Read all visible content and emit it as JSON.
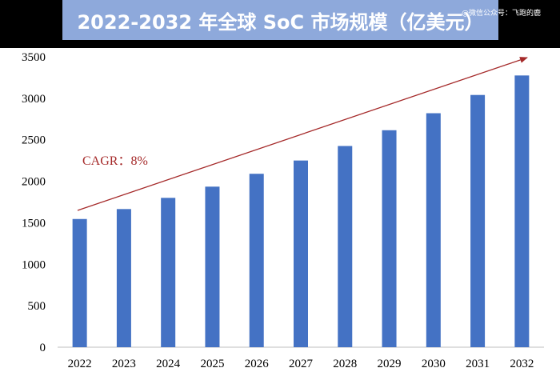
{
  "header": {
    "title": "2022-2032 年全球 SoC 市场规模（亿美元）",
    "watermark": "@微信公众号：飞跑的鹿"
  },
  "chart_data": {
    "type": "bar",
    "title": "2022-2032 年全球 SoC 市场规模（亿美元）",
    "categories": [
      "2022",
      "2023",
      "2024",
      "2025",
      "2026",
      "2027",
      "2028",
      "2029",
      "2030",
      "2031",
      "2032"
    ],
    "values": [
      1545,
      1665,
      1800,
      1935,
      2090,
      2250,
      2425,
      2615,
      2820,
      3040,
      3275
    ],
    "ylim": [
      0,
      3500
    ],
    "yticks": [
      0,
      500,
      1000,
      1500,
      2000,
      2500,
      3000,
      3500
    ],
    "xlabel": "",
    "ylabel": "",
    "grid": false,
    "bar_color": "#4472c4",
    "annotation": {
      "text": "CAGR：8%",
      "color": "#a52a2a",
      "arrow": true
    }
  }
}
